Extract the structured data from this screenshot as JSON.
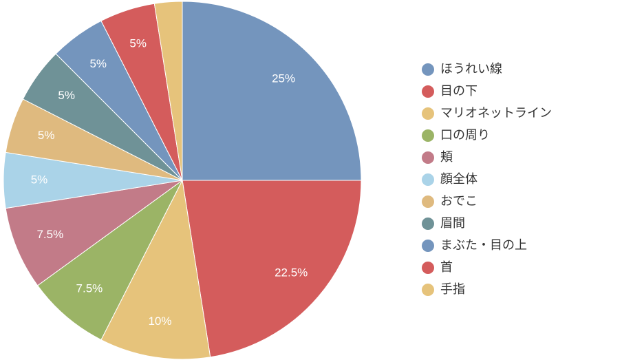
{
  "chart_data": {
    "type": "pie",
    "categories": [
      "ほうれい線",
      "目の下",
      "マリオネットライン",
      "口の周り",
      "頬",
      "顔全体",
      "おでこ",
      "眉間",
      "まぶた・目の上",
      "首",
      "手指"
    ],
    "values": [
      25,
      22.5,
      10,
      7.5,
      7.5,
      5,
      5,
      5,
      5,
      5,
      2.5
    ],
    "value_labels": [
      "25%",
      "22.5%",
      "10%",
      "7.5%",
      "7.5%",
      "5%",
      "5%",
      "5%",
      "5%",
      "5%",
      null
    ],
    "colors": [
      "#7495bd",
      "#d45c5c",
      "#e6c37b",
      "#9bb466",
      "#c27b88",
      "#aad3e8",
      "#dfba7f",
      "#6f9297",
      "#7495bd",
      "#d45c5c",
      "#e6c37b"
    ],
    "legend": "right"
  }
}
